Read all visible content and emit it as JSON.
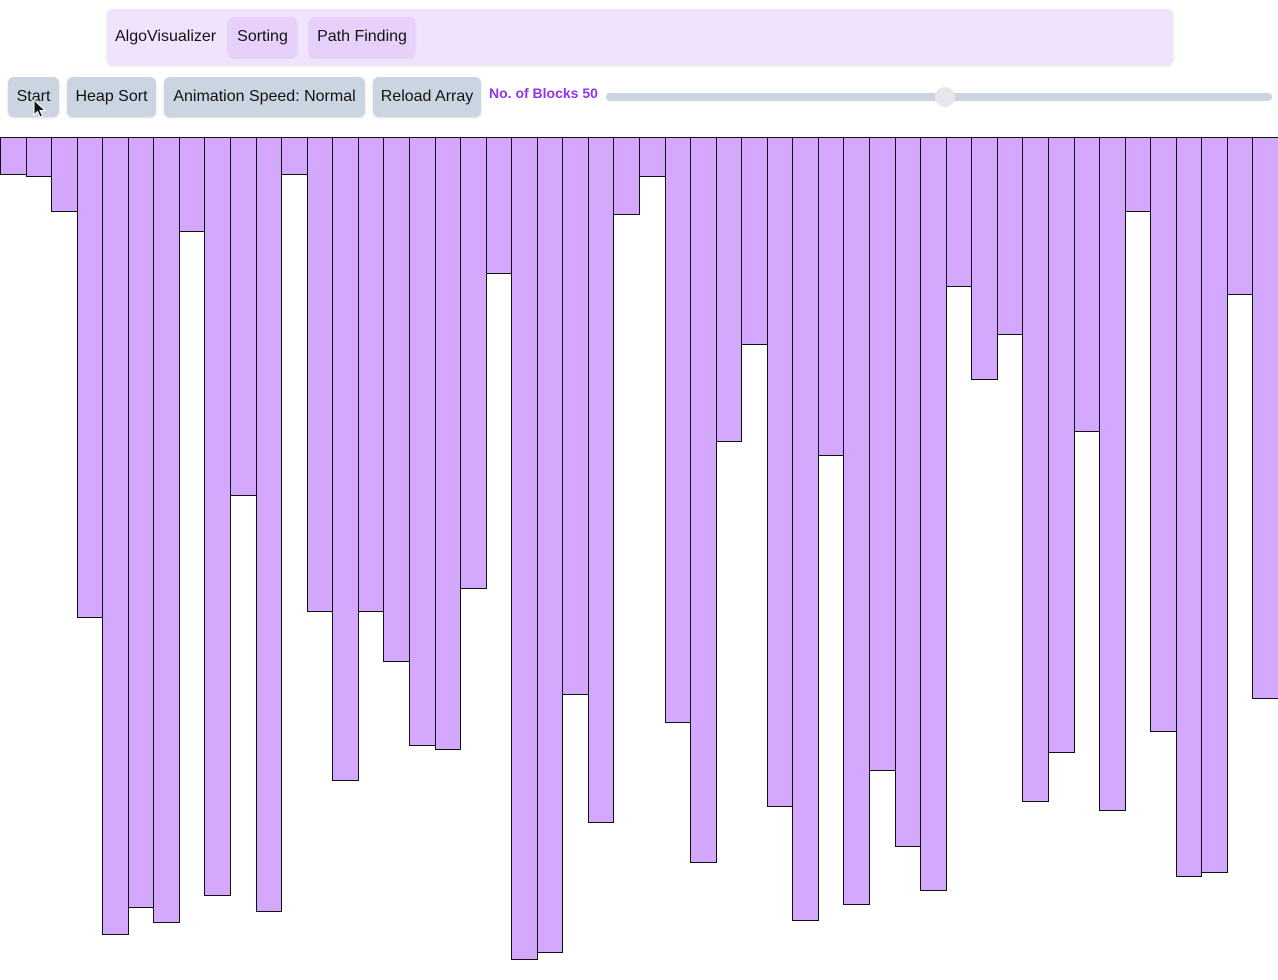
{
  "nav": {
    "brand": "AlgoVisualizer",
    "sorting_label": "Sorting",
    "pathfinding_label": "Path Finding"
  },
  "toolbar": {
    "start_label": "Start",
    "algorithm_label": "Heap Sort",
    "speed_label": "Animation Speed: Normal",
    "reload_label": "Reload Array",
    "blocks_label": "No. of Blocks 50",
    "blocks_count": 50,
    "slider_fraction": 0.5
  },
  "colors": {
    "bar_fill": "#d4a8fc",
    "bar_border": "#111111",
    "navbar_bg": "#f0e3fc",
    "nav_button_bg": "#e7d1fb",
    "toolbar_button_bg": "#cbd5e1",
    "label_accent": "#9333ea"
  },
  "array": {
    "values": [
      38,
      40,
      75,
      481,
      798,
      771,
      786,
      95,
      759,
      359,
      775,
      38,
      475,
      644,
      475,
      525,
      609,
      613,
      452,
      137,
      823,
      816,
      558,
      686,
      78,
      40,
      586,
      726,
      305,
      208,
      670,
      784,
      319,
      768,
      634,
      710,
      754,
      150,
      243,
      198,
      665,
      616,
      295,
      674,
      75,
      595,
      740,
      736,
      158,
      562
    ],
    "max_value": 843
  }
}
